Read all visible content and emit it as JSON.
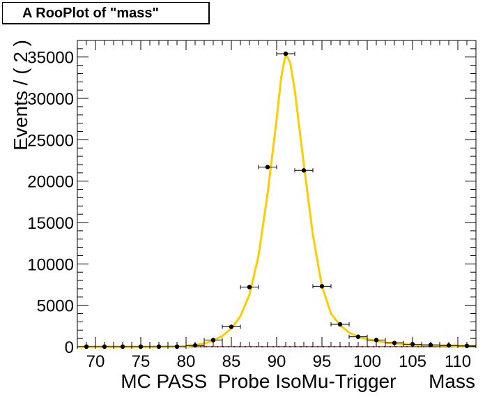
{
  "title": "A RooPlot of \"mass\"",
  "chart_data": {
    "type": "scatter",
    "title": "A RooPlot of \"mass\"",
    "xlabel": "MC PASS  Probe IsoMu-Trigger      Mass",
    "ylabel": "Events / ( 2 )",
    "xlim": [
      68,
      112
    ],
    "ylim": [
      0,
      37000
    ],
    "x_ticks": [
      70,
      75,
      80,
      85,
      90,
      95,
      100,
      105,
      110
    ],
    "y_ticks": [
      0,
      5000,
      10000,
      15000,
      20000,
      25000,
      30000,
      35000
    ],
    "x_tick_labels": [
      "70",
      "75",
      "80",
      "85",
      "90",
      "95",
      "100",
      "105",
      "110"
    ],
    "y_tick_labels": [
      "0",
      "5000",
      "10000",
      "15000",
      "20000",
      "25000",
      "30000",
      "35000"
    ],
    "grid": false,
    "series": [
      {
        "kind": "points-with-errors",
        "x_halfwidth": 1,
        "x": [
          69,
          71,
          73,
          75,
          77,
          79,
          81,
          83,
          85,
          87,
          89,
          91,
          93,
          95,
          97,
          99,
          101,
          103,
          105,
          107,
          109,
          111
        ],
        "y": [
          0,
          0,
          0,
          0,
          0,
          0,
          150,
          800,
          2400,
          7200,
          21700,
          35400,
          21300,
          7300,
          2700,
          1200,
          800,
          450,
          300,
          200,
          150,
          100
        ]
      },
      {
        "kind": "fit-curve",
        "color": "#ffcc00",
        "x": [
          68,
          72,
          76,
          78,
          80,
          81,
          82,
          83,
          84,
          85,
          86,
          87,
          88,
          89,
          90,
          90.5,
          91,
          91.5,
          92,
          93,
          94,
          95,
          96,
          97,
          98,
          99,
          100,
          102,
          104,
          106,
          108,
          110,
          112
        ],
        "y": [
          0,
          0,
          0,
          20,
          80,
          200,
          400,
          700,
          1300,
          2200,
          3700,
          6300,
          11000,
          18500,
          27500,
          32500,
          35400,
          34300,
          31000,
          22000,
          13500,
          7300,
          4000,
          2600,
          1700,
          1200,
          900,
          500,
          300,
          200,
          150,
          100,
          80
        ]
      },
      {
        "kind": "background-curve",
        "color": "#cc0000",
        "x": [
          68,
          112
        ],
        "y": [
          0,
          0
        ]
      }
    ]
  }
}
